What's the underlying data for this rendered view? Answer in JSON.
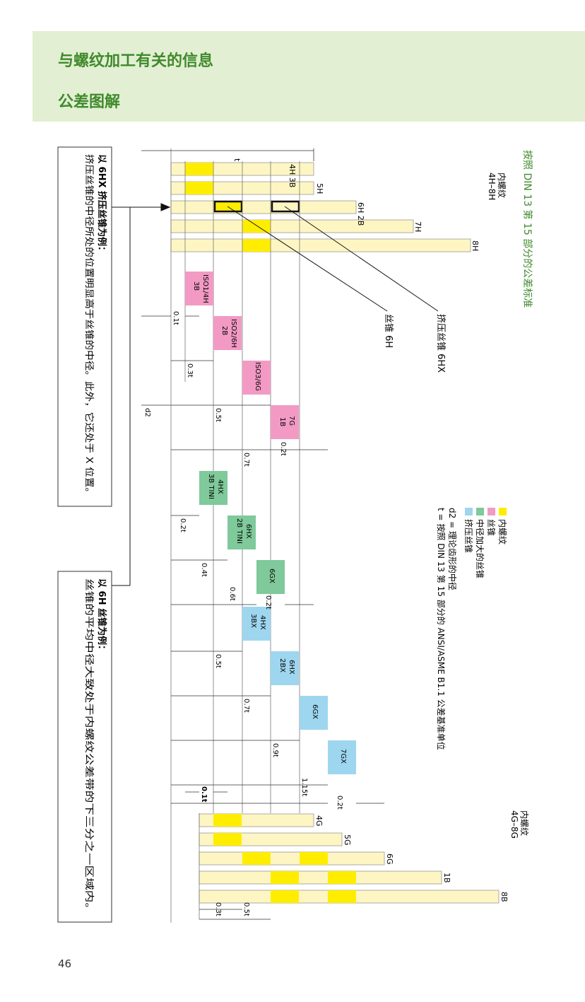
{
  "header": {
    "title": "与螺纹加工有关的信息",
    "subtitle": "公差图解"
  },
  "page_number": "46",
  "diagram": {
    "heading": "按照 DIN 13 第 15 部分的公差标准",
    "internal_thread_label_1": "内螺纹",
    "internal_thread_range_1": "4H–8H",
    "internal_thread_label_2": "内螺纹",
    "internal_thread_range_2": "4G–8G",
    "callout_forming_tap": "挤压丝锥 6HX",
    "callout_tap": "丝锥 6H",
    "t_label": "t",
    "d2_label": "d2",
    "top_rows": [
      {
        "label": "4H 3B"
      },
      {
        "label": "5H"
      },
      {
        "label": "6H 2B"
      },
      {
        "label": "7H"
      },
      {
        "label": "8H"
      }
    ],
    "bottom_rows": [
      {
        "label": "4G"
      },
      {
        "label": "5G"
      },
      {
        "label": "6G"
      },
      {
        "label": "1B"
      },
      {
        "label": "8B"
      }
    ],
    "boxes": [
      {
        "line1": "ISO1/4H",
        "line2": "3B",
        "type": "tap"
      },
      {
        "line1": "ISO2/6H",
        "line2": "2B",
        "type": "tap"
      },
      {
        "line1": "ISO3/6G",
        "line2": "",
        "type": "tap"
      },
      {
        "line1": "7G",
        "line2": "1B",
        "type": "tap"
      },
      {
        "line1": "4HX",
        "line2": "3B TINI",
        "type": "oversize"
      },
      {
        "line1": "6HX",
        "line2": "2B TINI",
        "type": "oversize"
      },
      {
        "line1": "6GX",
        "line2": "",
        "type": "oversize"
      },
      {
        "line1": "4HX",
        "line2": "3BX",
        "type": "forming"
      },
      {
        "line1": "6HX",
        "line2": "2BX",
        "type": "forming"
      },
      {
        "line1": "6GX",
        "line2": "",
        "type": "forming"
      },
      {
        "line1": "7GX",
        "line2": "",
        "type": "forming"
      }
    ],
    "dimensions": {
      "d_01t": "0.1t",
      "d_03t_a": "0.3t",
      "d_05t_a": "0.5t",
      "d_07t_a": "0.7t",
      "d_02t_a": "0.2t",
      "d_02t_b": "0.2t",
      "d_04t": "0.4t",
      "d_06t": "0.6t",
      "d_02t_c": "0.2t",
      "d_05t_b": "0.5t",
      "d_07t_b": "0.7t",
      "d_09t": "0.9t",
      "d_115t": "1.15t",
      "d_02t_d": "0.2t",
      "d_01t_b": "0.1t",
      "d_03t_b": "0.3t",
      "d_05t_c": "0.5t"
    },
    "legend": [
      {
        "label": "内螺纹",
        "color": "#ffed00"
      },
      {
        "label": "丝锥",
        "color": "#f29ac4"
      },
      {
        "label": "中径加大的丝锥",
        "color": "#7fc99a"
      },
      {
        "label": "挤压丝锥",
        "color": "#9ed6f0"
      }
    ],
    "legend_notes": {
      "d2_note": "d2 = 理论齿形的中径",
      "t_note": "t = 按照 DIN 13 第 15 部分的 ANSI/ASME B1.1 公差基准单位"
    },
    "note_1": {
      "title": "以 6HX 挤压丝锥为例：",
      "body": "挤压丝锥的中径所处的位置明显高于丝锥的中径。此外，它还处于 X 位置。"
    },
    "note_2": {
      "title": "以 6H 丝锥为例：",
      "body": "丝锥的平均中径大致处于内螺纹公差带的下三分之一区域内。"
    },
    "colors": {
      "green_heading": "#3f8a2c",
      "header_bg": "#e2efd2",
      "band_fill": "#fdf6c3",
      "yellow": "#ffed00",
      "pink": "#f29ac4",
      "green": "#7fc99a",
      "blue": "#9ed6f0"
    }
  }
}
